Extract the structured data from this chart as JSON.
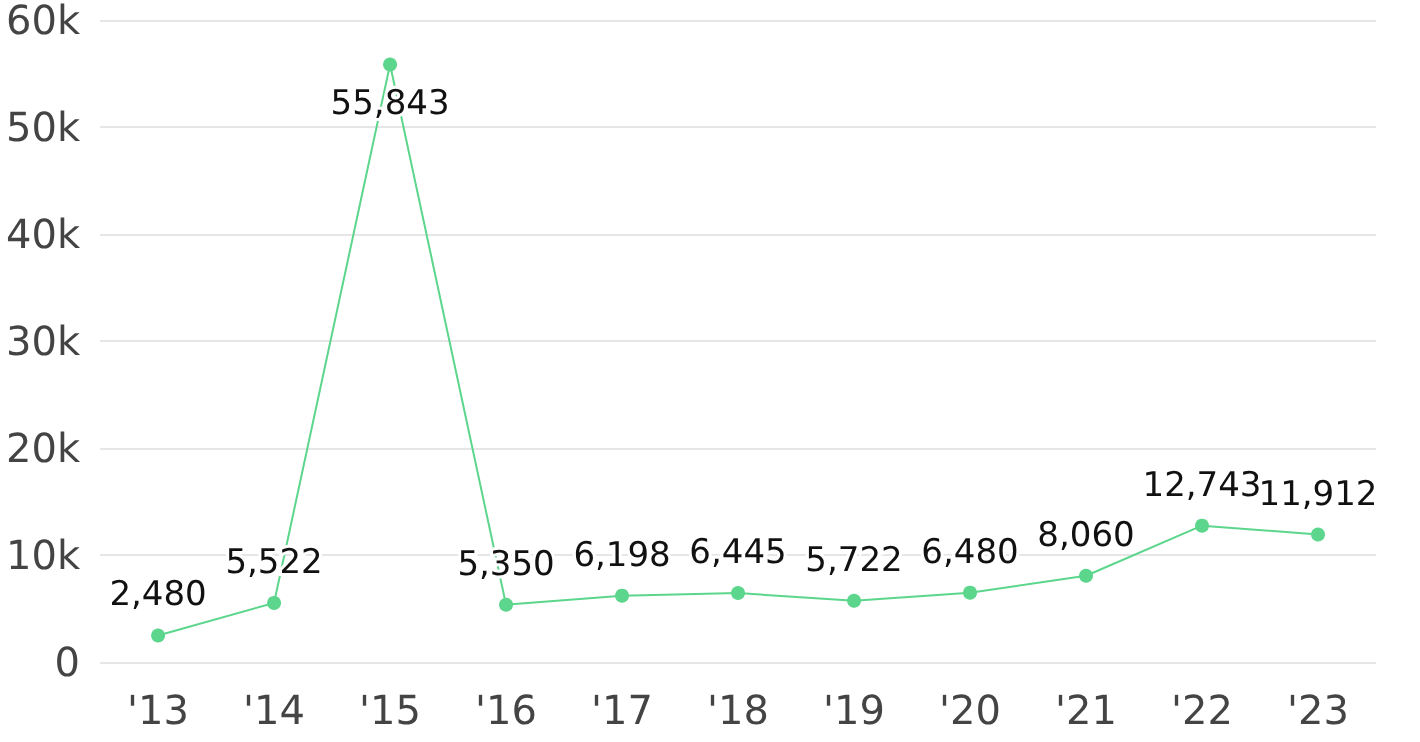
{
  "chart_data": {
    "type": "line",
    "categories": [
      "'13",
      "'14",
      "'15",
      "'16",
      "'17",
      "'18",
      "'19",
      "'20",
      "'21",
      "'22",
      "'23"
    ],
    "series": [
      {
        "color": "#5cd68c",
        "values": [
          2480,
          5522,
          55843,
          5350,
          6198,
          6445,
          5722,
          6480,
          8060,
          12743,
          11912
        ],
        "value_labels": [
          "2,480",
          "5,522",
          "55,843",
          "5,350",
          "6,198",
          "6,445",
          "5,722",
          "6,480",
          "8,060",
          "12,743",
          "11,912"
        ]
      }
    ],
    "ylim": [
      0,
      60000
    ],
    "yticks": [
      {
        "value": 0,
        "label": "0"
      },
      {
        "value": 10000,
        "label": "10k"
      },
      {
        "value": 20000,
        "label": "20k"
      },
      {
        "value": 30000,
        "label": "30k"
      },
      {
        "value": 40000,
        "label": "40k"
      },
      {
        "value": 50000,
        "label": "50k"
      },
      {
        "value": 60000,
        "label": "60k"
      }
    ],
    "grid": "y",
    "marker": "circle",
    "line_style": "solid"
  }
}
